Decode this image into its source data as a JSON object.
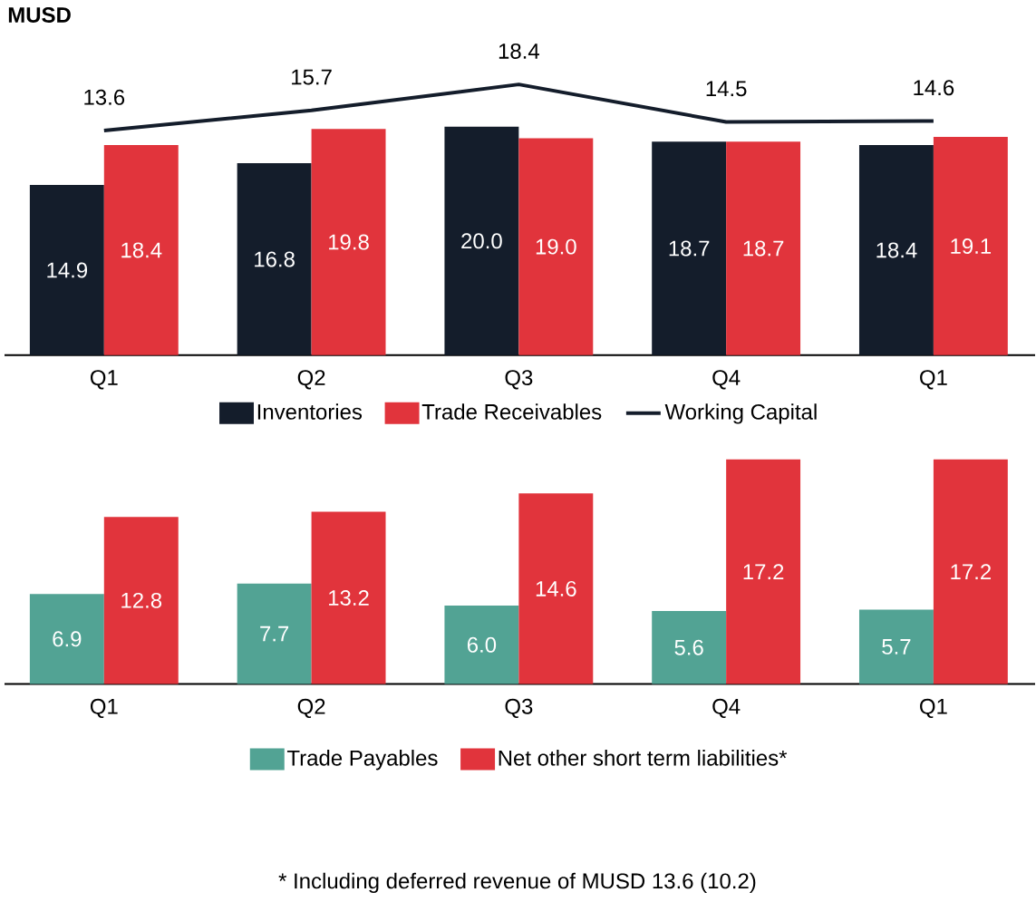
{
  "chart_data": [
    {
      "type": "bar",
      "title": "MUSD",
      "categories": [
        "Q1",
        "Q2",
        "Q3",
        "Q4",
        "Q1"
      ],
      "series": [
        {
          "name": "Inventories",
          "color": "#141d2b",
          "values": [
            14.9,
            16.8,
            20.0,
            18.7,
            18.4
          ],
          "value_labels": [
            "14.9",
            "16.8",
            "20.0",
            "18.7",
            "18.4"
          ]
        },
        {
          "name": "Trade Receivables",
          "color": "#e1343c",
          "values": [
            18.4,
            19.8,
            19.0,
            18.7,
            19.1
          ],
          "value_labels": [
            "18.4",
            "19.8",
            "19.0",
            "18.7",
            "19.1"
          ]
        },
        {
          "name": "Working Capital",
          "type": "line",
          "axis": "y2",
          "color": "#141d2b",
          "values": [
            13.6,
            15.7,
            18.4,
            14.5,
            14.6
          ],
          "value_labels": [
            "13.6",
            "15.7",
            "18.4",
            "14.5",
            "14.6"
          ]
        }
      ],
      "legend": "bottom",
      "tick_labels": "x"
    },
    {
      "type": "bar",
      "categories": [
        "Q1",
        "Q2",
        "Q3",
        "Q4",
        "Q1"
      ],
      "series": [
        {
          "name": "Trade Payables",
          "color": "#52a394",
          "values": [
            6.9,
            7.7,
            6.0,
            5.6,
            5.7
          ],
          "value_labels": [
            "6.9",
            "7.7",
            "6.0",
            "5.6",
            "5.7"
          ]
        },
        {
          "name": "Net other short term liabilities*",
          "color": "#e1343c",
          "values": [
            12.8,
            13.2,
            14.6,
            17.2,
            17.2
          ],
          "value_labels": [
            "12.8",
            "13.2",
            "14.6",
            "17.2",
            "17.2"
          ]
        }
      ],
      "legend": "bottom",
      "tick_labels": "x",
      "annotations": [
        "* Including deferred revenue of MUSD 13.6 (10.2)"
      ]
    }
  ]
}
